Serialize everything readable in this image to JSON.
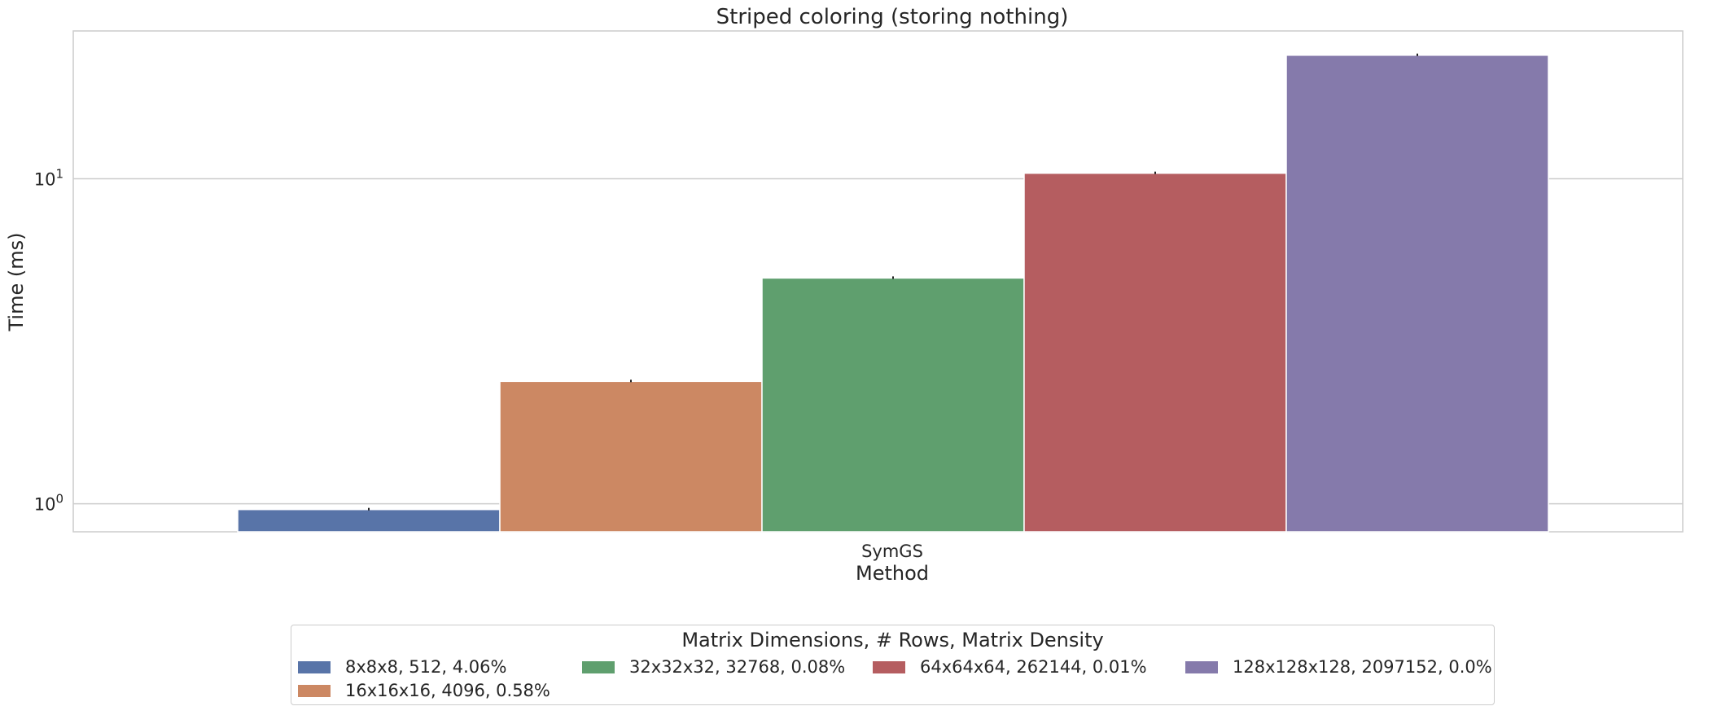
{
  "chart_data": {
    "type": "bar",
    "title": "Striped coloring (storing nothing)",
    "xlabel": "Method",
    "ylabel": "Time (ms)",
    "yscale": "log",
    "ylim": [
      0.82,
      28.5
    ],
    "yticks": [
      {
        "value": 1,
        "base": "10",
        "exp": "0"
      },
      {
        "value": 10,
        "base": "10",
        "exp": "1"
      }
    ],
    "grid": true,
    "categories": [
      "SymGS"
    ],
    "series": [
      {
        "name": "8x8x8, 512, 4.06%",
        "values": [
          0.96
        ],
        "color": "#5874a8"
      },
      {
        "name": "16x16x16, 4096, 0.58%",
        "values": [
          2.38
        ],
        "color": "#cc8863"
      },
      {
        "name": "32x32x32, 32768, 0.08%",
        "values": [
          4.95
        ],
        "color": "#5f9f6e"
      },
      {
        "name": "64x64x64, 262144, 0.01%",
        "values": [
          10.4
        ],
        "color": "#b55d60"
      },
      {
        "name": "128x128x128, 2097152, 0.0%",
        "values": [
          24.0
        ],
        "color": "#857aab"
      }
    ],
    "legend": {
      "title": "Matrix Dimensions, # Rows, Matrix Density",
      "placement": "below",
      "columns": 4
    }
  }
}
